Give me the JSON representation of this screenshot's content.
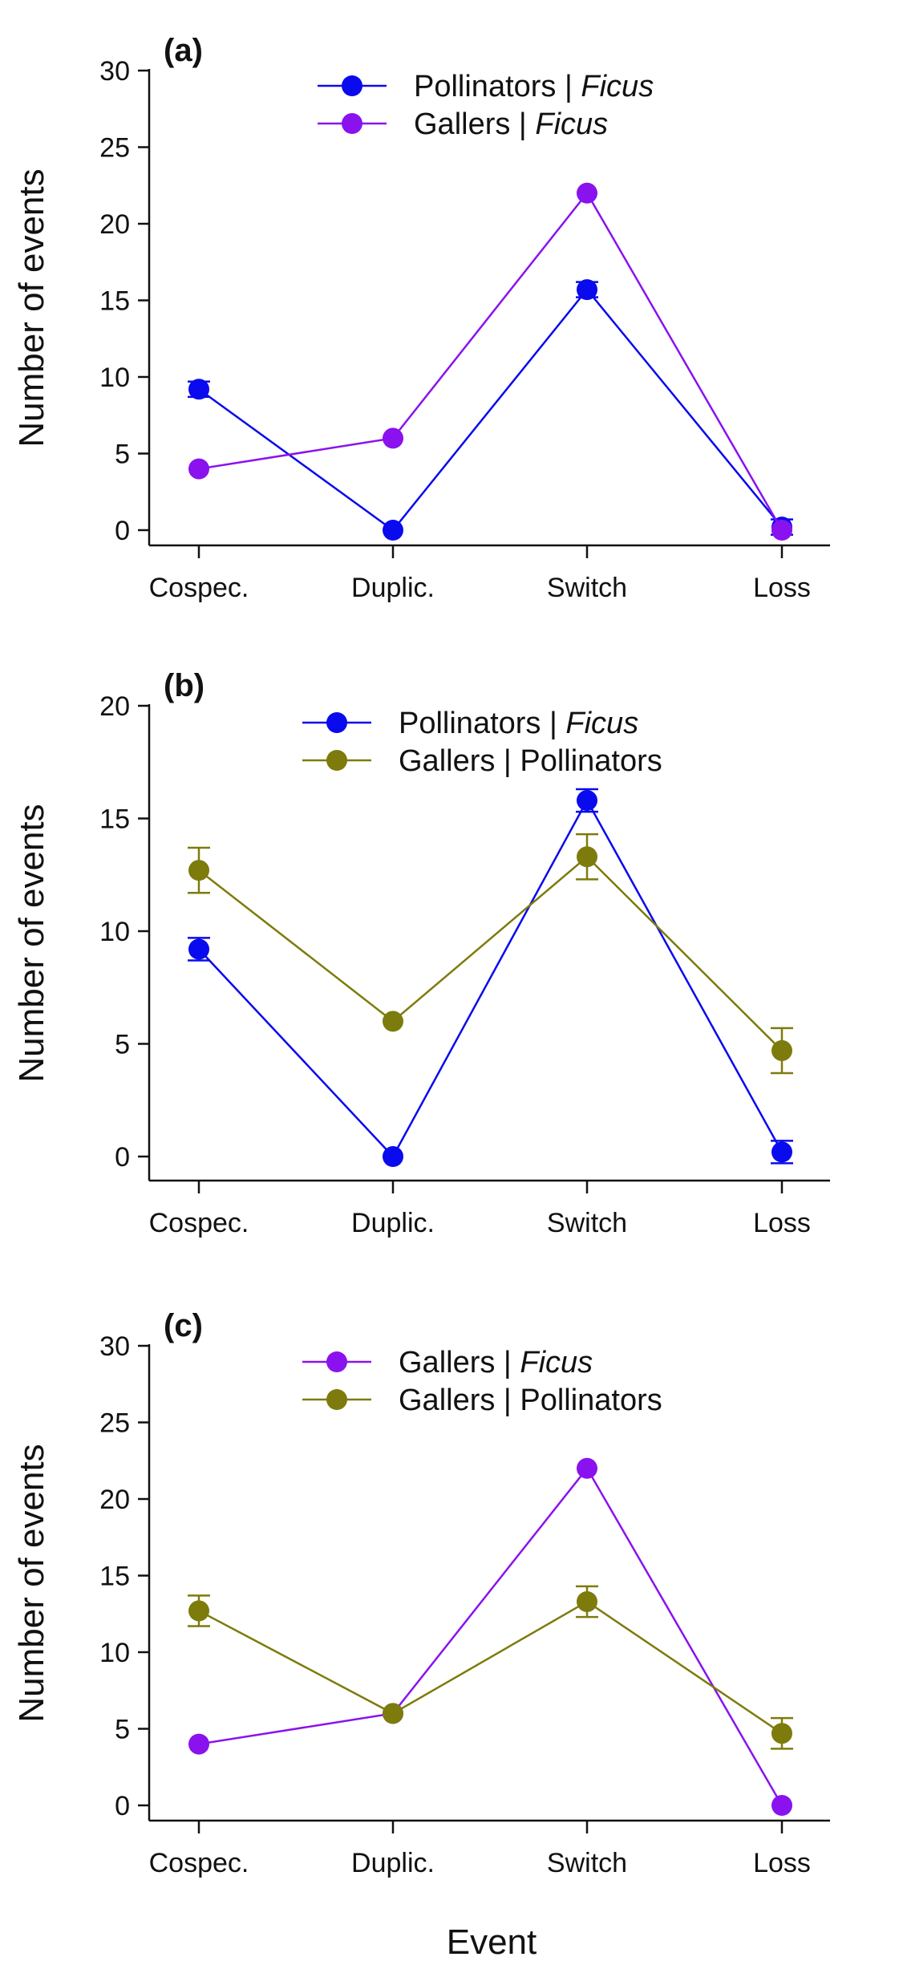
{
  "colors": {
    "pollinators_ficus": "#0a0aee",
    "gallers_ficus": "#8a12ee",
    "gallers_pollinators": "#7d7b0b"
  },
  "xlabel": "Event",
  "chart_data": [
    {
      "type": "line",
      "panel_label": "(a)",
      "categories": [
        "Cospec.",
        "Duplic.",
        "Switch",
        "Loss"
      ],
      "ylabel": "Number of events",
      "ylim": [
        0,
        30
      ],
      "yticks": [
        "0",
        "5",
        "10",
        "15",
        "20",
        "25",
        "30"
      ],
      "legend_position": "top-center",
      "series": [
        {
          "key": "pollinators_ficus",
          "name_main": "Pollinators | ",
          "name_italic": "Ficus",
          "values": [
            9.2,
            0,
            15.7,
            0.2
          ],
          "errors": [
            0.5,
            0,
            0.5,
            0.5
          ]
        },
        {
          "key": "gallers_ficus",
          "name_main": "Gallers | ",
          "name_italic": "Ficus",
          "values": [
            4,
            6,
            22,
            0
          ],
          "errors": [
            0,
            0,
            0,
            0
          ]
        }
      ]
    },
    {
      "type": "line",
      "panel_label": "(b)",
      "categories": [
        "Cospec.",
        "Duplic.",
        "Switch",
        "Loss"
      ],
      "ylabel": "Number of events",
      "ylim": [
        0,
        20
      ],
      "yticks": [
        "0",
        "5",
        "10",
        "15",
        "20"
      ],
      "legend_position": "top-center",
      "series": [
        {
          "key": "pollinators_ficus",
          "name_main": "Pollinators | ",
          "name_italic": "Ficus",
          "values": [
            9.2,
            0,
            15.8,
            0.2
          ],
          "errors": [
            0.5,
            0,
            0.5,
            0.5
          ]
        },
        {
          "key": "gallers_pollinators",
          "name_main": "Gallers | Pollinators",
          "name_italic": "",
          "values": [
            12.7,
            6,
            13.3,
            4.7
          ],
          "errors": [
            1.0,
            0,
            1.0,
            1.0
          ]
        }
      ]
    },
    {
      "type": "line",
      "panel_label": "(c)",
      "categories": [
        "Cospec.",
        "Duplic.",
        "Switch",
        "Loss"
      ],
      "ylabel": "Number of events",
      "ylim": [
        0,
        30
      ],
      "yticks": [
        "0",
        "5",
        "10",
        "15",
        "20",
        "25",
        "30"
      ],
      "legend_position": "top-center",
      "series": [
        {
          "key": "gallers_ficus",
          "name_main": "Gallers | ",
          "name_italic": "Ficus",
          "values": [
            4,
            6,
            22,
            0
          ],
          "errors": [
            0,
            0,
            0,
            0
          ]
        },
        {
          "key": "gallers_pollinators",
          "name_main": "Gallers | Pollinators",
          "name_italic": "",
          "values": [
            12.7,
            6,
            13.3,
            4.7
          ],
          "errors": [
            1.0,
            0,
            1.0,
            1.0
          ]
        }
      ]
    }
  ]
}
